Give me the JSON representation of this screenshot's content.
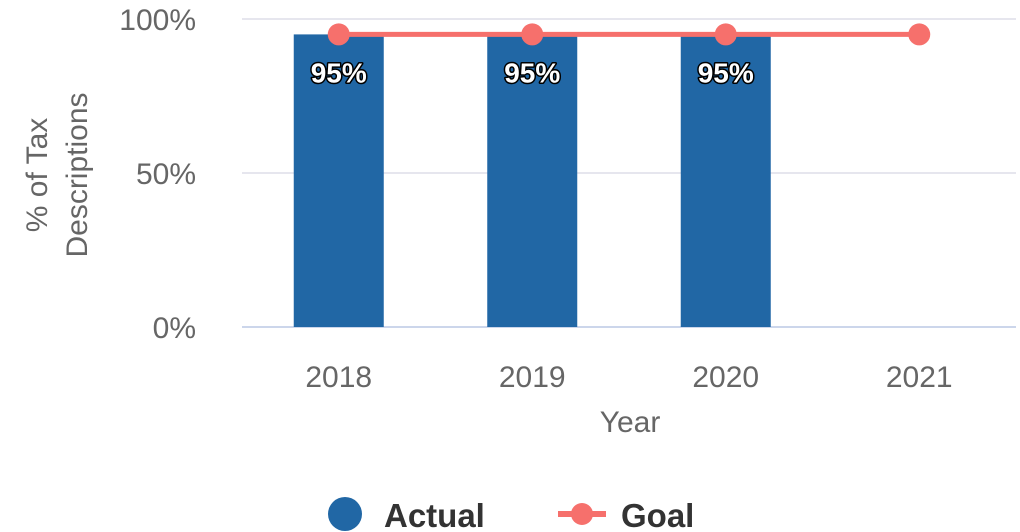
{
  "chart_data": {
    "type": "bar",
    "categories": [
      "2018",
      "2019",
      "2020",
      "2021"
    ],
    "series": [
      {
        "name": "Actual",
        "kind": "bar",
        "color": "#2167a5",
        "values": [
          95,
          95,
          95,
          null
        ],
        "labels": [
          "95%",
          "95%",
          "95%",
          ""
        ]
      },
      {
        "name": "Goal",
        "kind": "line",
        "color": "#f6706c",
        "values": [
          95,
          95,
          95,
          95
        ]
      }
    ],
    "xlabel": "Year",
    "ylabel_lines": [
      "% of Tax",
      "Descriptions"
    ],
    "ylim": [
      0,
      100
    ],
    "yticks": [
      0,
      50,
      100
    ],
    "ytick_labels": [
      "0%",
      "50%",
      "100%"
    ],
    "grid": true,
    "grid_color": "#e6e6ee",
    "axis_line_color": "#ccd6eb",
    "legend_placement": "bottom-center"
  }
}
